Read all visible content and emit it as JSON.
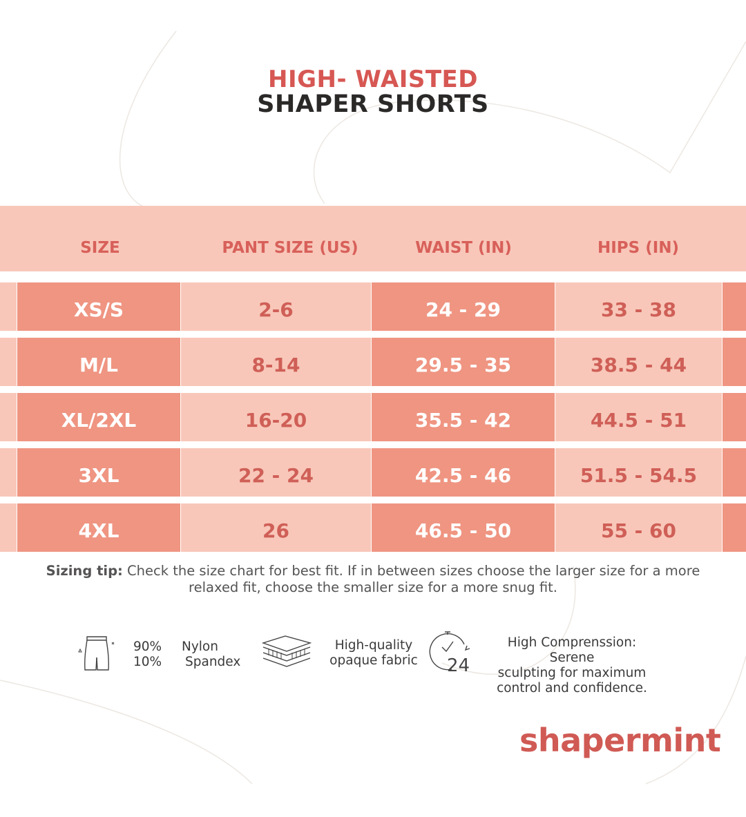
{
  "title": {
    "line1": "HIGH- WAISTED",
    "line2": "SHAPER SHORTS"
  },
  "table": {
    "headers": [
      "SIZE",
      "PANT SIZE (US)",
      "WAIST (IN)",
      "HIPS (IN)"
    ],
    "rows": [
      [
        "XS/S",
        "2-6",
        "24 - 29",
        "33 - 38"
      ],
      [
        "M/L",
        "8-14",
        "29.5 - 35",
        "38.5 - 44"
      ],
      [
        "XL/2XL",
        "16-20",
        "35.5 - 42",
        "44.5 - 51"
      ],
      [
        "3XL",
        "22 - 24",
        "42.5 - 46",
        "51.5 - 54.5"
      ],
      [
        "4XL",
        "26",
        "46.5 - 50",
        "55 - 60"
      ]
    ]
  },
  "tip": {
    "label": "Sizing tip:",
    "line1": " Check the size chart for best fit. If in between sizes choose the larger size for a more",
    "line2": "relaxed fit, choose the smaller size for a more snug fit."
  },
  "features": {
    "composition": {
      "pct1": "90%",
      "pct2": "10%",
      "mat1": "Nylon",
      "mat2": "Spandex",
      "icon": "shorts-icon"
    },
    "fabric": {
      "line1": "High-quality",
      "line2": "opaque fabric",
      "icon": "fabric-layers-icon"
    },
    "compression": {
      "line1": "High Comprenssion: Serene",
      "line2": "sculpting for maximum",
      "line3": "control and confidence.",
      "icon": "clock-24-icon",
      "icon_text": "24"
    }
  },
  "brand": {
    "logo": "shapermint"
  },
  "colors": {
    "accent": "#d65753",
    "dark_cell": "#ef9582",
    "light_cell": "#f8c7b9",
    "title_dark": "#2b2828"
  }
}
